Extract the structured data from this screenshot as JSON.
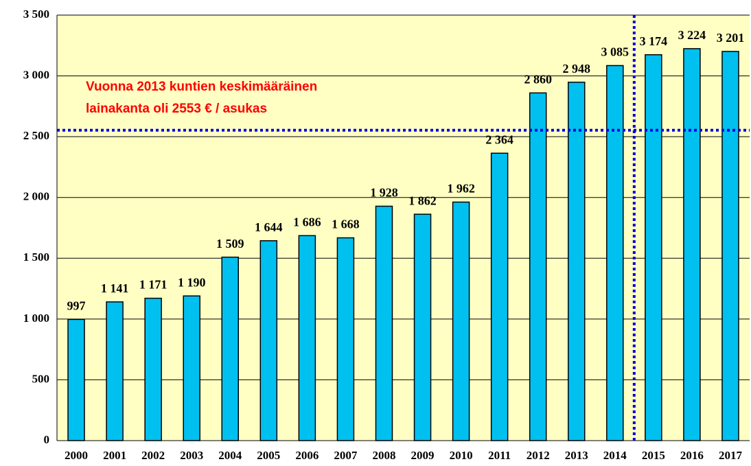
{
  "chart_data": {
    "type": "bar",
    "categories": [
      "2000",
      "2001",
      "2002",
      "2003",
      "2004",
      "2005",
      "2006",
      "2007",
      "2008",
      "2009",
      "2010",
      "2011",
      "2012",
      "2013",
      "2014",
      "2015",
      "2016",
      "2017"
    ],
    "values": [
      997,
      1141,
      1171,
      1190,
      1509,
      1644,
      1686,
      1668,
      1928,
      1862,
      1962,
      2364,
      2860,
      2948,
      3085,
      3174,
      3224,
      3201
    ],
    "value_labels": [
      "997",
      "1 141",
      "1 171",
      "1 190",
      "1 509",
      "1 644",
      "1 686",
      "1 668",
      "1 928",
      "1 862",
      "1 962",
      "2 364",
      "2 860",
      "2 948",
      "3 085",
      "3 174",
      "3 224",
      "3 201"
    ],
    "color": "#00c0f0",
    "ylim": [
      0,
      3500
    ],
    "yticks": [
      0,
      500,
      {
        "value": 1000,
        "label": "1 000"
      },
      {
        "value": 1500,
        "label": "1 500"
      },
      {
        "value": 2000,
        "label": "2 000"
      },
      {
        "value": 2500,
        "label": "2 500"
      },
      {
        "value": 3000,
        "label": "3 000"
      },
      {
        "value": 3500,
        "label": "3 500"
      }
    ],
    "grid": true,
    "annotations": [
      "Vuonna 2013 kuntien keskimääräinen",
      "lainakanta oli  2553 € / asukas"
    ],
    "reference_line": 2553
  }
}
